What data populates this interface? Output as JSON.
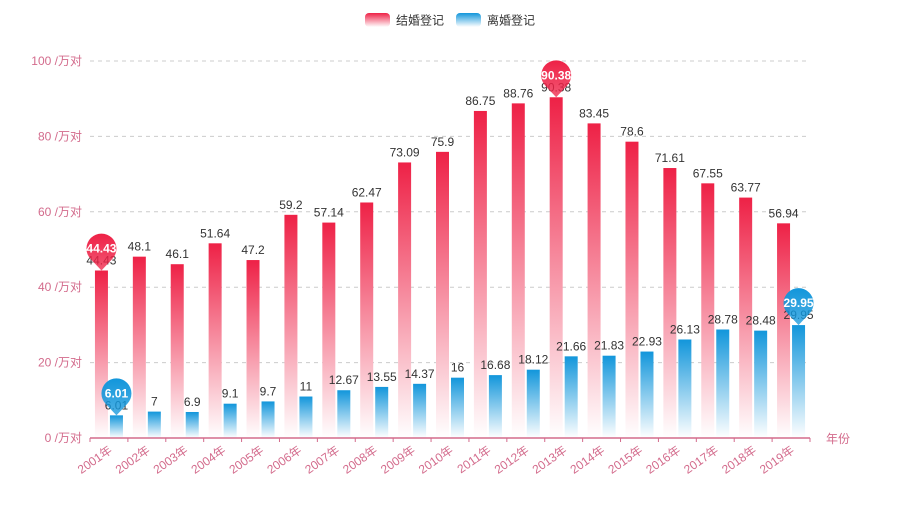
{
  "chart_data": {
    "type": "bar",
    "xlabel": "年份",
    "ylim": [
      0,
      100
    ],
    "yticks": [
      0,
      20,
      40,
      60,
      80,
      100
    ],
    "ytick_labels": [
      "0 /万对",
      "20 /万对",
      "40 /万对",
      "60 /万对",
      "80 /万对",
      "100 /万对"
    ],
    "categories": [
      "2001年",
      "2002年",
      "2003年",
      "2004年",
      "2005年",
      "2006年",
      "2007年",
      "2008年",
      "2009年",
      "2010年",
      "2011年",
      "2012年",
      "2013年",
      "2014年",
      "2015年",
      "2016年",
      "2017年",
      "2018年",
      "2019年"
    ],
    "series": [
      {
        "name": "结婚登记",
        "values": [
          44.43,
          48.1,
          46.1,
          51.64,
          47.2,
          59.2,
          57.14,
          62.47,
          73.09,
          75.9,
          86.75,
          88.76,
          90.38,
          83.45,
          78.6,
          71.61,
          67.55,
          63.77,
          56.94
        ],
        "value_labels": [
          "44.43",
          "48.1",
          "46.1",
          "51.64",
          "47.2",
          "59.2",
          "57.14",
          "62.47",
          "73.09",
          "75.9",
          "86.75",
          "88.76",
          "90.38",
          "83.45",
          "78.6",
          "71.61",
          "67.55",
          "63.77",
          "56.94"
        ],
        "color_top": "#ee2146",
        "color_bottom": "#ffffff",
        "markers": [
          {
            "label": "44.43",
            "index": 0,
            "value": 44.43
          },
          {
            "label": "90.38",
            "index": 12,
            "value": 90.38
          }
        ]
      },
      {
        "name": "离婚登记",
        "values": [
          6.01,
          7,
          6.9,
          9.1,
          9.7,
          11,
          12.67,
          13.55,
          14.37,
          16,
          16.68,
          18.12,
          21.66,
          21.83,
          22.93,
          26.13,
          28.78,
          28.48,
          29.95
        ],
        "value_labels": [
          "6.01",
          "7",
          "6.9",
          "9.1",
          "9.7",
          "11",
          "12.67",
          "13.55",
          "14.37",
          "16",
          "16.68",
          "18.12",
          "21.66",
          "21.83",
          "22.93",
          "26.13",
          "28.78",
          "28.48",
          "29.95"
        ],
        "color_top": "#1296db",
        "color_bottom": "#ffffff",
        "markers": [
          {
            "label": "6.01",
            "index": 0,
            "value": 6.01
          },
          {
            "label": "29.95",
            "index": 18,
            "value": 29.95
          }
        ]
      }
    ],
    "grid": true,
    "legend_position": "top-center",
    "axis_color": "#d36b8c"
  }
}
